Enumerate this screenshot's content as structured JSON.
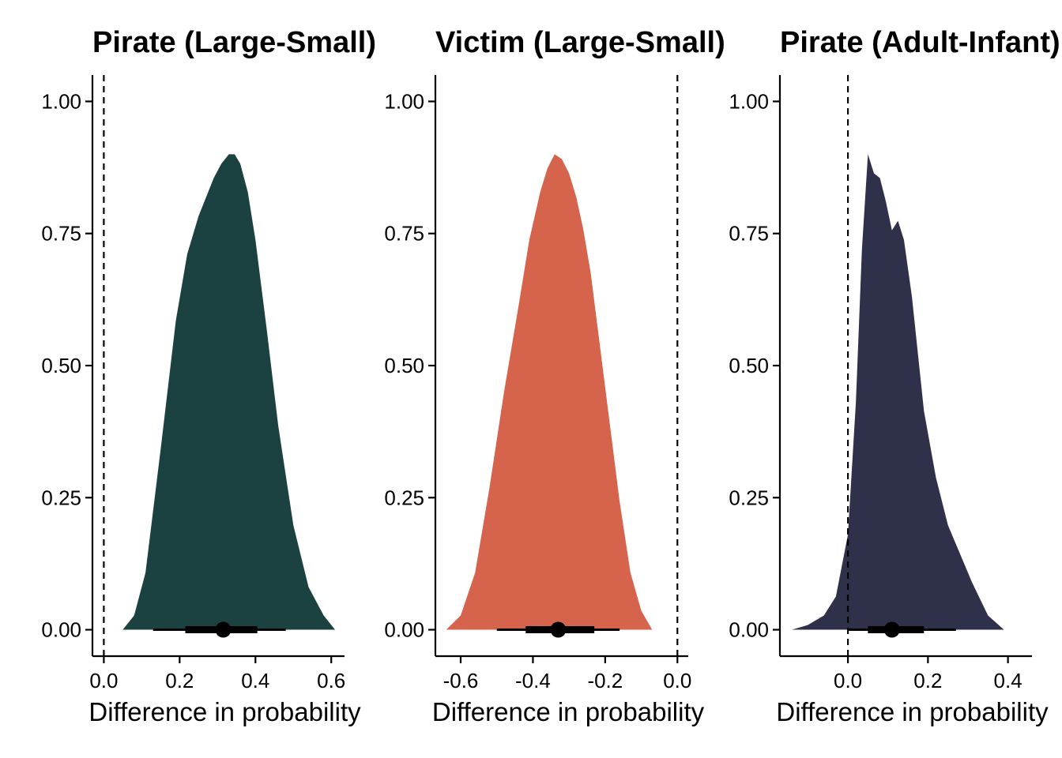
{
  "chart_data": [
    {
      "type": "area",
      "title": "Pirate (Large-Small)",
      "xlabel": "Difference in probability",
      "ylabel": "",
      "fill": "#1b4241",
      "xlim": [
        -0.03,
        0.635
      ],
      "ylim": [
        -0.05,
        1.05
      ],
      "xticks": [
        0.0,
        0.2,
        0.4,
        0.6
      ],
      "xtick_labels": [
        "0.0",
        "0.2",
        "0.4",
        "0.6"
      ],
      "yticks": [
        0.0,
        0.25,
        0.5,
        0.75,
        1.0
      ],
      "ytick_labels": [
        "0.00",
        "0.25",
        "0.50",
        "0.75",
        "1.00"
      ],
      "reference_line_x": 0.0,
      "density": {
        "x": [
          0.05,
          0.08,
          0.11,
          0.15,
          0.19,
          0.22,
          0.25,
          0.27,
          0.29,
          0.31,
          0.33,
          0.345,
          0.36,
          0.38,
          0.4,
          0.43,
          0.46,
          0.5,
          0.54,
          0.58,
          0.61
        ],
        "y": [
          0.0,
          0.03,
          0.12,
          0.38,
          0.65,
          0.79,
          0.87,
          0.91,
          0.95,
          0.98,
          1.0,
          1.0,
          0.98,
          0.92,
          0.82,
          0.63,
          0.43,
          0.22,
          0.09,
          0.03,
          0.0
        ]
      },
      "point_estimate": 0.315,
      "interval_inner": [
        0.215,
        0.405
      ],
      "interval_outer": [
        0.13,
        0.48
      ]
    },
    {
      "type": "area",
      "title": "Victim (Large-Small)",
      "xlabel": "Difference in probability",
      "ylabel": "",
      "fill": "#d6644d",
      "xlim": [
        -0.67,
        0.03
      ],
      "ylim": [
        -0.05,
        1.05
      ],
      "xticks": [
        -0.6,
        -0.4,
        -0.2,
        0.0
      ],
      "xtick_labels": [
        "-0.6",
        "-0.4",
        "-0.2",
        "0.0"
      ],
      "yticks": [
        0.0,
        0.25,
        0.5,
        0.75,
        1.0
      ],
      "ytick_labels": [
        "0.00",
        "0.25",
        "0.50",
        "0.75",
        "1.00"
      ],
      "reference_line_x": 0.0,
      "density": {
        "x": [
          -0.64,
          -0.6,
          -0.56,
          -0.52,
          -0.48,
          -0.44,
          -0.41,
          -0.38,
          -0.36,
          -0.34,
          -0.32,
          -0.3,
          -0.28,
          -0.26,
          -0.24,
          -0.22,
          -0.19,
          -0.16,
          -0.13,
          -0.1,
          -0.07
        ],
        "y": [
          0.0,
          0.03,
          0.12,
          0.3,
          0.5,
          0.68,
          0.82,
          0.92,
          0.97,
          1.0,
          0.99,
          0.96,
          0.91,
          0.84,
          0.75,
          0.63,
          0.45,
          0.27,
          0.12,
          0.04,
          0.0
        ]
      },
      "point_estimate": -0.33,
      "interval_inner": [
        -0.42,
        -0.23
      ],
      "interval_outer": [
        -0.5,
        -0.16
      ]
    },
    {
      "type": "area",
      "title": "Pirate (Adult-Infant)",
      "xlabel": "Difference in probability",
      "ylabel": "",
      "fill": "#2f3049",
      "xlim": [
        -0.17,
        0.46
      ],
      "ylim": [
        -0.05,
        1.05
      ],
      "xticks": [
        0.0,
        0.2,
        0.4
      ],
      "xtick_labels": [
        "0.0",
        "0.2",
        "0.4"
      ],
      "yticks": [
        0.0,
        0.25,
        0.5,
        0.75,
        1.0
      ],
      "ytick_labels": [
        "0.00",
        "0.25",
        "0.50",
        "0.75",
        "1.00"
      ],
      "reference_line_x": 0.0,
      "density": {
        "x": [
          -0.14,
          -0.1,
          -0.06,
          -0.03,
          0.0,
          0.02,
          0.035,
          0.05,
          0.065,
          0.08,
          0.095,
          0.11,
          0.125,
          0.14,
          0.16,
          0.19,
          0.22,
          0.25,
          0.28,
          0.31,
          0.35,
          0.39,
          0.43
        ],
        "y": [
          0.0,
          0.01,
          0.03,
          0.07,
          0.2,
          0.48,
          0.8,
          1.0,
          0.96,
          0.95,
          0.9,
          0.84,
          0.86,
          0.82,
          0.7,
          0.46,
          0.32,
          0.22,
          0.16,
          0.1,
          0.03,
          0.0,
          0.0
        ]
      },
      "point_estimate": 0.11,
      "interval_inner": [
        0.05,
        0.19
      ],
      "interval_outer": [
        0.0,
        0.27
      ]
    }
  ]
}
